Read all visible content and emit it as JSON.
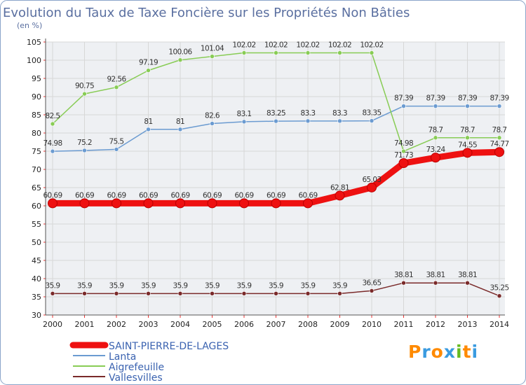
{
  "title": "Evolution du Taux de Taxe Foncière sur les Propriétés Non Bâties",
  "subtitle": "(en %)",
  "brand": {
    "letters": [
      "P",
      "r",
      "o",
      "x",
      "i",
      "t",
      "i"
    ],
    "colors": [
      "#ff8a00",
      "#3a9be0",
      "#ff8a00",
      "#3a9be0",
      "#66bb22",
      "#ff8a00",
      "#3a9be0"
    ]
  },
  "colors": {
    "frame": "#8aa4c9",
    "grid": "#d7d7d7",
    "background_band": "#eef0f3",
    "tick_text": "#222222",
    "title": "#5a6fa0"
  },
  "chart_data": {
    "type": "line",
    "title": "Evolution du Taux de Taxe Foncière sur les Propriétés Non Bâties",
    "ylabel": "(en %)",
    "xlabel": "",
    "x": [
      "2000",
      "2001",
      "2002",
      "2003",
      "2004",
      "2005",
      "2006",
      "2007",
      "2008",
      "2009",
      "2010",
      "2011",
      "2012",
      "2013",
      "2014"
    ],
    "ylim": [
      30,
      105
    ],
    "yticks": [
      30,
      35,
      40,
      45,
      50,
      55,
      60,
      65,
      70,
      75,
      80,
      85,
      90,
      95,
      100,
      105
    ],
    "grid": true,
    "legend": "bottom-left",
    "series": [
      {
        "name": "SAINT-PIERRE-DE-LAGES",
        "color": "#ee1111",
        "emphasis": true,
        "values": [
          60.69,
          60.69,
          60.69,
          60.69,
          60.69,
          60.69,
          60.69,
          60.69,
          60.69,
          62.81,
          65.03,
          71.73,
          73.24,
          74.55,
          74.77
        ],
        "labels": [
          "60.69",
          "60.69",
          "60.69",
          "60.69",
          "60.69",
          "60.69",
          "60.69",
          "60.69",
          "60.69",
          "62.81",
          "65.03",
          "71.73",
          "73.24",
          "74.55",
          "74.77"
        ]
      },
      {
        "name": "Lanta",
        "color": "#6b9bd1",
        "emphasis": false,
        "values": [
          74.98,
          75.2,
          75.5,
          81,
          81,
          82.6,
          83.1,
          83.25,
          83.3,
          83.3,
          83.35,
          87.39,
          87.39,
          87.39,
          87.39
        ],
        "labels": [
          "74.98",
          "75.2",
          "75.5",
          "81",
          "81",
          "82.6",
          "83.1",
          "83.25",
          "83.3",
          "83.3",
          "83.35",
          "87.39",
          "87.39",
          "87.39",
          "87.39"
        ]
      },
      {
        "name": "Aigrefeuille",
        "color": "#88cc55",
        "emphasis": false,
        "values": [
          82.5,
          90.75,
          92.56,
          97.19,
          100.06,
          101.04,
          102.02,
          102.02,
          102.02,
          102.02,
          102.02,
          74.98,
          78.7,
          78.7,
          78.7
        ],
        "labels": [
          "82.5",
          "90.75",
          "92.56",
          "97.19",
          "100.06",
          "101.04",
          "102.02",
          "102.02",
          "102.02",
          "102.02",
          "102.02",
          "74.98",
          "78.7",
          "78.7",
          "78.7"
        ]
      },
      {
        "name": "Vallesvilles",
        "color": "#7a2a2a",
        "emphasis": false,
        "values": [
          35.9,
          35.9,
          35.9,
          35.9,
          35.9,
          35.9,
          35.9,
          35.9,
          35.9,
          35.9,
          36.65,
          38.81,
          38.81,
          38.81,
          35.25
        ],
        "labels": [
          "35.9",
          "35.9",
          "35.9",
          "35.9",
          "35.9",
          "35.9",
          "35.9",
          "35.9",
          "35.9",
          "35.9",
          "36.65",
          "38.81",
          "38.81",
          "38.81",
          "35.25"
        ]
      }
    ]
  }
}
